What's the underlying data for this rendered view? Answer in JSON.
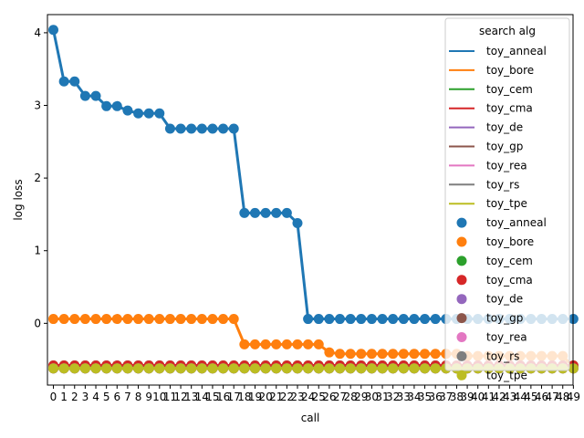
{
  "chart_data": {
    "type": "line",
    "xlabel": "call",
    "ylabel": "log loss",
    "ylim": [
      -0.85,
      4.25
    ],
    "yticks": [
      0,
      1,
      2,
      3,
      4
    ],
    "x": [
      0,
      1,
      2,
      3,
      4,
      5,
      6,
      7,
      8,
      9,
      10,
      11,
      12,
      13,
      14,
      15,
      16,
      17,
      18,
      19,
      20,
      21,
      22,
      23,
      24,
      25,
      26,
      27,
      28,
      29,
      30,
      31,
      32,
      33,
      34,
      35,
      36,
      37,
      38,
      39,
      40,
      41,
      42,
      43,
      44,
      45,
      46,
      47,
      48,
      49
    ],
    "legend": {
      "title": "search alg",
      "placement": "upper right",
      "line_entries": [
        "toy_anneal",
        "toy_bore",
        "toy_cem",
        "toy_cma",
        "toy_de",
        "toy_gp",
        "toy_rea",
        "toy_rs",
        "toy_tpe"
      ],
      "marker_entries": [
        "toy_anneal",
        "toy_bore",
        "toy_cem",
        "toy_cma",
        "toy_de",
        "toy_gp",
        "toy_rea",
        "toy_rs",
        "toy_tpe"
      ]
    },
    "series": [
      {
        "name": "toy_anneal",
        "color": "#1f77b4",
        "values": [
          4.04,
          3.33,
          3.33,
          3.13,
          3.13,
          2.99,
          2.99,
          2.93,
          2.89,
          2.89,
          2.89,
          2.68,
          2.68,
          2.68,
          2.68,
          2.68,
          2.68,
          2.68,
          1.52,
          1.52,
          1.52,
          1.52,
          1.52,
          1.38,
          0.06,
          0.06,
          0.06,
          0.06,
          0.06,
          0.06,
          0.06,
          0.06,
          0.06,
          0.06,
          0.06,
          0.06,
          0.06,
          0.06,
          0.06,
          0.06,
          0.06,
          0.06,
          0.06,
          0.06,
          0.06,
          0.06,
          0.06,
          0.06,
          0.06,
          0.06
        ]
      },
      {
        "name": "toy_bore",
        "color": "#ff7f0e",
        "values": [
          0.06,
          0.06,
          0.06,
          0.06,
          0.06,
          0.06,
          0.06,
          0.06,
          0.06,
          0.06,
          0.06,
          0.06,
          0.06,
          0.06,
          0.06,
          0.06,
          0.06,
          0.06,
          -0.29,
          -0.29,
          -0.29,
          -0.29,
          -0.29,
          -0.29,
          -0.29,
          -0.29,
          -0.4,
          -0.42,
          -0.42,
          -0.42,
          -0.42,
          -0.42,
          -0.42,
          -0.42,
          -0.42,
          -0.42,
          -0.42,
          -0.42,
          -0.42,
          -0.45,
          -0.45,
          -0.45,
          -0.45,
          -0.45,
          -0.45,
          -0.45,
          -0.45,
          -0.45,
          -0.45,
          -0.6
        ]
      },
      {
        "name": "toy_cem",
        "color": "#2ca02c",
        "values": [
          -0.58,
          -0.58,
          -0.58,
          -0.58,
          -0.58,
          -0.58,
          -0.58,
          -0.58,
          -0.58,
          -0.58,
          -0.58,
          -0.58,
          -0.58,
          -0.58,
          -0.58,
          -0.58,
          -0.58,
          -0.58,
          -0.58,
          -0.58,
          -0.58,
          -0.58,
          -0.58,
          -0.58,
          -0.58,
          -0.58,
          -0.58,
          -0.58,
          -0.58,
          -0.58,
          -0.58,
          -0.58,
          -0.58,
          -0.58,
          -0.58,
          -0.58,
          -0.58,
          -0.58,
          -0.58,
          -0.58,
          -0.58,
          -0.58,
          -0.58,
          -0.58,
          -0.58,
          -0.58,
          -0.58,
          -0.58,
          -0.58,
          -0.58
        ]
      },
      {
        "name": "toy_cma",
        "color": "#d62728",
        "values": [
          -0.58,
          -0.58,
          -0.58,
          -0.58,
          -0.58,
          -0.58,
          -0.58,
          -0.58,
          -0.58,
          -0.58,
          -0.58,
          -0.58,
          -0.58,
          -0.58,
          -0.58,
          -0.58,
          -0.58,
          -0.58,
          -0.58,
          -0.58,
          -0.58,
          -0.58,
          -0.58,
          -0.58,
          -0.58,
          -0.58,
          -0.58,
          -0.58,
          -0.58,
          -0.58,
          -0.58,
          -0.58,
          -0.58,
          -0.58,
          -0.58,
          -0.58,
          -0.58,
          -0.58,
          -0.58,
          -0.58,
          -0.58,
          -0.58,
          -0.58,
          -0.58,
          -0.58,
          -0.58,
          -0.58,
          -0.58,
          -0.58,
          -0.58
        ]
      },
      {
        "name": "toy_de",
        "color": "#9467bd",
        "values": [
          -0.62,
          -0.62,
          -0.62,
          -0.62,
          -0.62,
          -0.62,
          -0.62,
          -0.62,
          -0.62,
          -0.62,
          -0.62,
          -0.62,
          -0.62,
          -0.62,
          -0.62,
          -0.62,
          -0.62,
          -0.62,
          -0.62,
          -0.62,
          -0.62,
          -0.62,
          -0.62,
          -0.62,
          -0.62,
          -0.62,
          -0.62,
          -0.62,
          -0.62,
          -0.62,
          -0.62,
          -0.62,
          -0.62,
          -0.62,
          -0.62,
          -0.62,
          -0.62,
          -0.62,
          -0.62,
          -0.62,
          -0.62,
          -0.62,
          -0.62,
          -0.62,
          -0.62,
          -0.62,
          -0.62,
          -0.62,
          -0.62,
          -0.62
        ]
      },
      {
        "name": "toy_gp",
        "color": "#8c564b",
        "values": [
          -0.62,
          -0.62,
          -0.62,
          -0.62,
          -0.62,
          -0.62,
          -0.62,
          -0.62,
          -0.62,
          -0.62,
          -0.62,
          -0.62,
          -0.62,
          -0.62,
          -0.62,
          -0.62,
          -0.62,
          -0.62,
          -0.62,
          -0.62,
          -0.62,
          -0.62,
          -0.62,
          -0.62,
          -0.62,
          -0.62,
          -0.62,
          -0.62,
          -0.62,
          -0.62,
          -0.62,
          -0.62,
          -0.62,
          -0.62,
          -0.62,
          -0.62,
          -0.62,
          -0.62,
          -0.62,
          -0.62,
          -0.62,
          -0.62,
          -0.62,
          -0.62,
          -0.62,
          -0.62,
          -0.62,
          -0.62,
          -0.62,
          -0.62
        ]
      },
      {
        "name": "toy_rea",
        "color": "#e377c2",
        "values": [
          -0.62,
          -0.62,
          -0.62,
          -0.62,
          -0.62,
          -0.62,
          -0.62,
          -0.62,
          -0.62,
          -0.62,
          -0.62,
          -0.62,
          -0.62,
          -0.62,
          -0.62,
          -0.62,
          -0.62,
          -0.62,
          -0.62,
          -0.62,
          -0.62,
          -0.62,
          -0.62,
          -0.62,
          -0.62,
          -0.62,
          -0.62,
          -0.62,
          -0.62,
          -0.62,
          -0.62,
          -0.62,
          -0.62,
          -0.62,
          -0.62,
          -0.62,
          -0.62,
          -0.62,
          -0.62,
          -0.62,
          -0.62,
          -0.62,
          -0.62,
          -0.62,
          -0.62,
          -0.62,
          -0.62,
          -0.62,
          -0.62,
          -0.62
        ]
      },
      {
        "name": "toy_rs",
        "color": "#7f7f7f",
        "values": [
          -0.62,
          -0.62,
          -0.62,
          -0.62,
          -0.62,
          -0.62,
          -0.62,
          -0.62,
          -0.62,
          -0.62,
          -0.62,
          -0.62,
          -0.62,
          -0.62,
          -0.62,
          -0.62,
          -0.62,
          -0.62,
          -0.62,
          -0.62,
          -0.62,
          -0.62,
          -0.62,
          -0.62,
          -0.62,
          -0.62,
          -0.62,
          -0.62,
          -0.62,
          -0.62,
          -0.62,
          -0.62,
          -0.62,
          -0.62,
          -0.62,
          -0.62,
          -0.62,
          -0.62,
          -0.62,
          -0.62,
          -0.62,
          -0.62,
          -0.62,
          -0.62,
          -0.62,
          -0.62,
          -0.62,
          -0.62,
          -0.62,
          -0.62
        ]
      },
      {
        "name": "toy_tpe",
        "color": "#bcbd22",
        "values": [
          -0.62,
          -0.62,
          -0.62,
          -0.62,
          -0.62,
          -0.62,
          -0.62,
          -0.62,
          -0.62,
          -0.62,
          -0.62,
          -0.62,
          -0.62,
          -0.62,
          -0.62,
          -0.62,
          -0.62,
          -0.62,
          -0.62,
          -0.62,
          -0.62,
          -0.62,
          -0.62,
          -0.62,
          -0.62,
          -0.62,
          -0.62,
          -0.62,
          -0.62,
          -0.62,
          -0.62,
          -0.62,
          -0.62,
          -0.62,
          -0.62,
          -0.62,
          -0.62,
          -0.62,
          -0.62,
          -0.62,
          -0.62,
          -0.62,
          -0.62,
          -0.62,
          -0.62,
          -0.62,
          -0.62,
          -0.62,
          -0.62,
          -0.62
        ]
      }
    ]
  }
}
